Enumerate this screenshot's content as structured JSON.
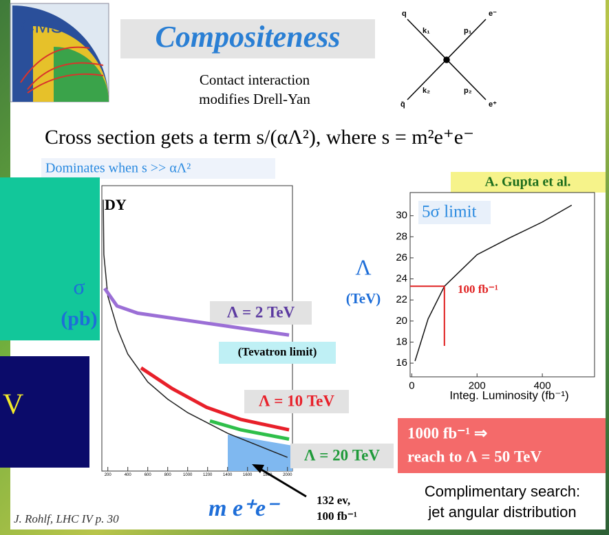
{
  "logo": "CMS",
  "title": "Compositeness",
  "subtitle": [
    "Contact interaction",
    "modifies Drell-Yan"
  ],
  "diagram": {
    "labels": [
      "q",
      "k₁",
      "p₁",
      "e⁻",
      "q̄",
      "k₂",
      "p₂",
      "e⁺"
    ]
  },
  "statement": "Cross section gets a term s/(αΛ²), where s = m²e⁺e⁻",
  "note": "Dominates  when s >> αΛ²",
  "credit": "A. Gupta et al.",
  "side_panels": {
    "sigma": "σ",
    "unit": "(pb)",
    "fragment": "V"
  },
  "reach_box": [
    "1000 fb⁻¹ ⇒",
    "reach to Λ = 50 TeV"
  ],
  "conclusion": [
    "Complimentary search:",
    "jet angular distribution"
  ],
  "footer": "J. Rohlf, LHC IV p. 30",
  "chart_data": [
    {
      "type": "line",
      "log_y": true,
      "x_label": "m e⁺e⁻",
      "annotations": [
        "DY",
        "Λ = 2 TeV",
        "(Tevatron limit)",
        "Λ = 10 TeV",
        "Λ = 20 TeV",
        "132 ev,",
        "100 fb⁻¹"
      ],
      "xlim": [
        140,
        2050
      ],
      "ylim": [
        1e-06,
        2000
      ],
      "xticks": [
        200,
        400,
        600,
        800,
        1000,
        1200,
        1400,
        1600,
        1800,
        2000
      ],
      "series": [
        {
          "name": "DY",
          "color": "#222222",
          "x": [
            154,
            160,
            200,
            300,
            400,
            600,
            800,
            1000,
            1400,
            2000
          ],
          "values": [
            700,
            11.5,
            0.5,
            0.04,
            0.0065,
            0.0008,
            0.00022,
            8e-05,
            1.7e-05,
            2.8e-06
          ]
        },
        {
          "name": "Λ = 2 TeV",
          "color": "#9b6fd6",
          "x": [
            168,
            292,
            499,
            1188,
            2016
          ],
          "values": [
            0.9,
            0.24,
            0.14,
            0.066,
            0.027
          ]
        },
        {
          "name": "Λ = 10 TeV",
          "color": "#e8202a",
          "x": [
            533,
            843,
            1188,
            1533,
            2016
          ],
          "values": [
            0.0023,
            0.00049,
            0.00012,
            4.8e-05,
            2.2e-05
          ]
        },
        {
          "name": "Λ = 20 TeV",
          "color": "#2fbf4a",
          "x": [
            1223,
            1533,
            2016
          ],
          "values": [
            4.3e-05,
            2.2e-05,
            1.1e-05
          ]
        }
      ]
    },
    {
      "type": "line",
      "y_label": [
        "Λ",
        "(TeV)"
      ],
      "x_label": "Integ. Luminosity (fb⁻¹)",
      "legend": "5σ limit",
      "annotation": "100 fb⁻¹",
      "xlim": [
        -5,
        560
      ],
      "ylim": [
        14.7,
        32.2
      ],
      "xticks": [
        0,
        200,
        400
      ],
      "yticks": [
        16,
        18,
        20,
        22,
        24,
        26,
        28,
        30
      ],
      "x": [
        10,
        20,
        50,
        100,
        200,
        300,
        400,
        490
      ],
      "series": [
        {
          "name": "5σ limit",
          "color": "#111111",
          "values": [
            16.2,
            17.2,
            20.2,
            23.3,
            26.3,
            27.9,
            29.4,
            31.0
          ]
        }
      ]
    }
  ]
}
